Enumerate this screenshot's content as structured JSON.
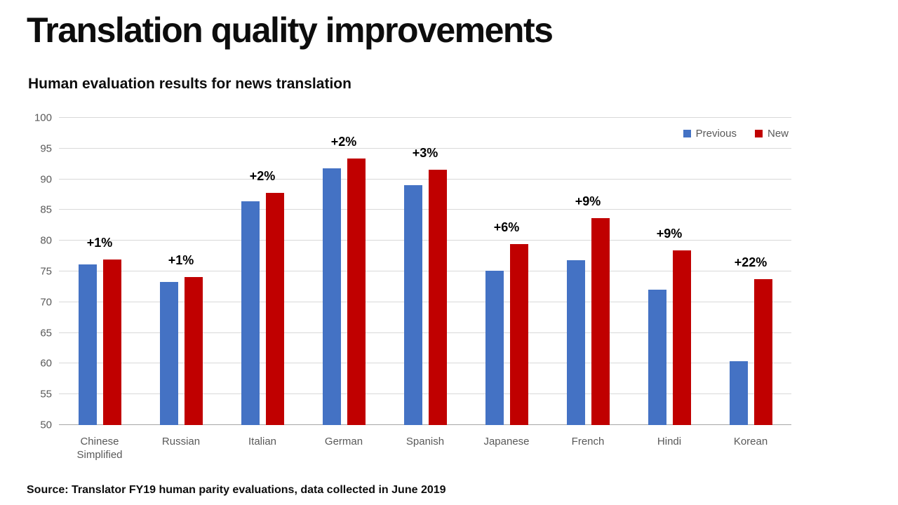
{
  "slide": {
    "title": "Translation quality improvements",
    "subtitle": "Human evaluation results for news translation",
    "source": "Source: Translator FY19 human parity evaluations, data collected in June 2019"
  },
  "chart_data": {
    "type": "bar",
    "title": "Human evaluation results for news translation",
    "categories": [
      "Chinese Simplified",
      "Russian",
      "Italian",
      "German",
      "Spanish",
      "Japanese",
      "French",
      "Hindi",
      "Korean"
    ],
    "series": [
      {
        "name": "Previous",
        "color": "#4472C4",
        "values": [
          76.1,
          73.3,
          86.4,
          91.8,
          89.0,
          75.1,
          76.8,
          72.0,
          60.4
        ]
      },
      {
        "name": "New",
        "color": "#C00000",
        "values": [
          76.9,
          74.1,
          87.8,
          93.4,
          91.5,
          79.5,
          83.7,
          78.4,
          73.7
        ]
      }
    ],
    "bar_labels": [
      "+1%",
      "+1%",
      "+2%",
      "+2%",
      "+3%",
      "+6%",
      "+9%",
      "+9%",
      "+22%"
    ],
    "xlabel": "",
    "ylabel": "",
    "ylim": [
      50,
      100
    ],
    "ytick_step": 5,
    "grid": true,
    "legend_position": "top-right"
  }
}
